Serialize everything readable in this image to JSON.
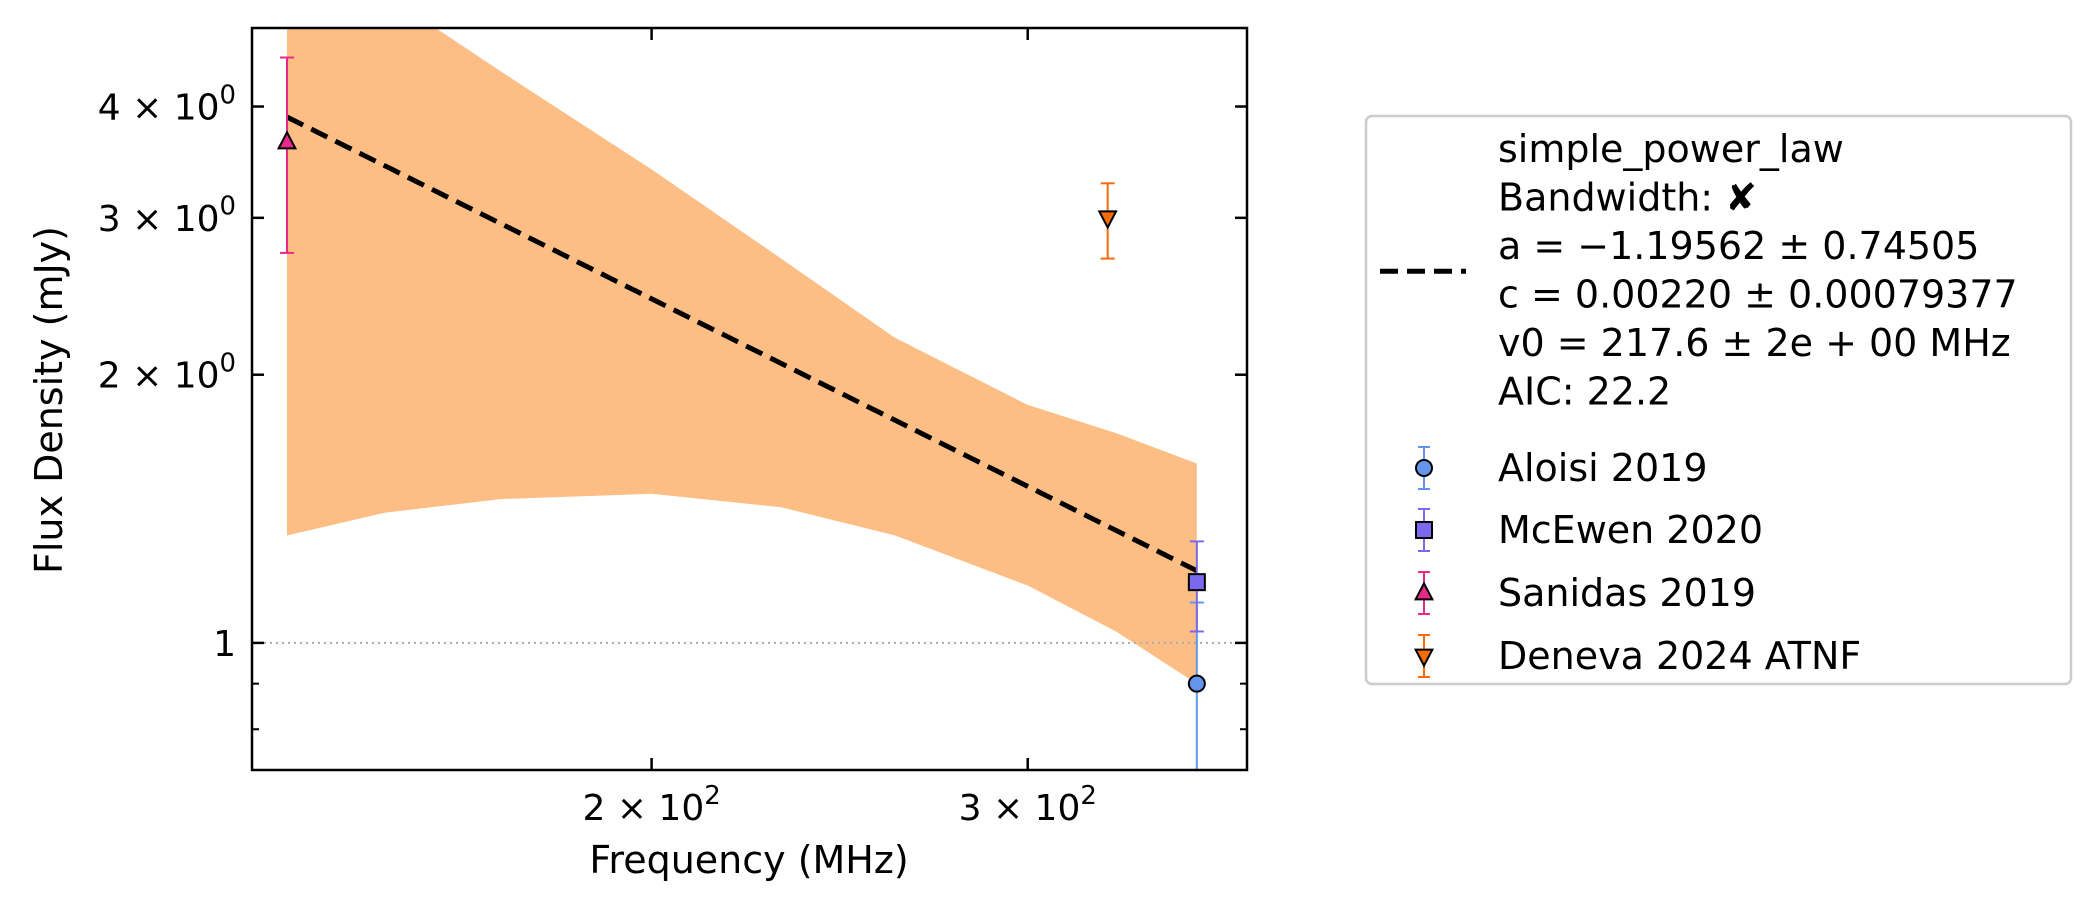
{
  "chart_data": {
    "type": "scatter",
    "xlabel": "Frequency (MHz)",
    "ylabel": "Flux Density (mJy)",
    "x_scale": "log",
    "y_scale": "log",
    "xlim": [
      130,
      380
    ],
    "ylim": [
      0.72,
      4.9
    ],
    "x_major_ticks": [
      {
        "value": 200,
        "mantissa": "2",
        "exponent": "2"
      },
      {
        "value": 300,
        "mantissa": "3",
        "exponent": "2"
      }
    ],
    "y_major_ticks": [
      {
        "value": 1,
        "text": "1"
      },
      {
        "value": 2,
        "mantissa": "2",
        "exponent": "0"
      },
      {
        "value": 3,
        "mantissa": "3",
        "exponent": "0"
      },
      {
        "value": 4,
        "mantissa": "4",
        "exponent": "0"
      }
    ],
    "y_minor_ticks": [
      0.8,
      0.9
    ],
    "x_minor_ticks": [],
    "reference_line": {
      "y": 1,
      "style": "dotted",
      "color": "#aaaaaa"
    },
    "fit": {
      "model": "simple_power_law",
      "nu0": 217.6,
      "a": -1.19562,
      "c": 0.0022,
      "x_range": [
        135,
        360
      ],
      "color": "#000000",
      "uncertainty_band": {
        "color": "#fdbe85",
        "x": [
          135,
          150,
          170,
          200,
          230,
          260,
          300,
          330,
          360
        ],
        "lower": [
          1.32,
          1.4,
          1.45,
          1.47,
          1.42,
          1.32,
          1.16,
          1.03,
          0.9
        ],
        "upper": [
          6.2,
          5.35,
          4.38,
          3.4,
          2.7,
          2.2,
          1.85,
          1.72,
          1.59
        ]
      }
    },
    "series": [
      {
        "name": "Aloisi 2019",
        "marker": "circle",
        "color": "#6495ed",
        "points": [
          {
            "x": 360,
            "y": 0.9,
            "err_low": 0.72,
            "err_high": 1.11
          }
        ]
      },
      {
        "name": "McEwen 2020",
        "marker": "square",
        "color": "#7b68ee",
        "points": [
          {
            "x": 360,
            "y": 1.17,
            "err_low": 1.03,
            "err_high": 1.3
          }
        ]
      },
      {
        "name": "Sanidas 2019",
        "marker": "triangle-up",
        "color": "#e7298a",
        "points": [
          {
            "x": 135,
            "y": 3.65,
            "err_low": 2.74,
            "err_high": 4.54
          }
        ]
      },
      {
        "name": "Deneva 2024 ATNF",
        "marker": "triangle-down",
        "color": "#f46d0a",
        "points": [
          {
            "x": 327,
            "y": 3.0,
            "err_low": 2.7,
            "err_high": 3.28
          }
        ]
      }
    ],
    "legend": {
      "placement": "right",
      "fit_entry": [
        "simple_power_law",
        "Bandwidth: ✘",
        "a = −1.19562 ± 0.74505",
        "c = 0.00220 ± 0.00079377",
        "v0 = 217.6 ± 2e + 00 MHz",
        "AIC: 22.2"
      ]
    }
  }
}
